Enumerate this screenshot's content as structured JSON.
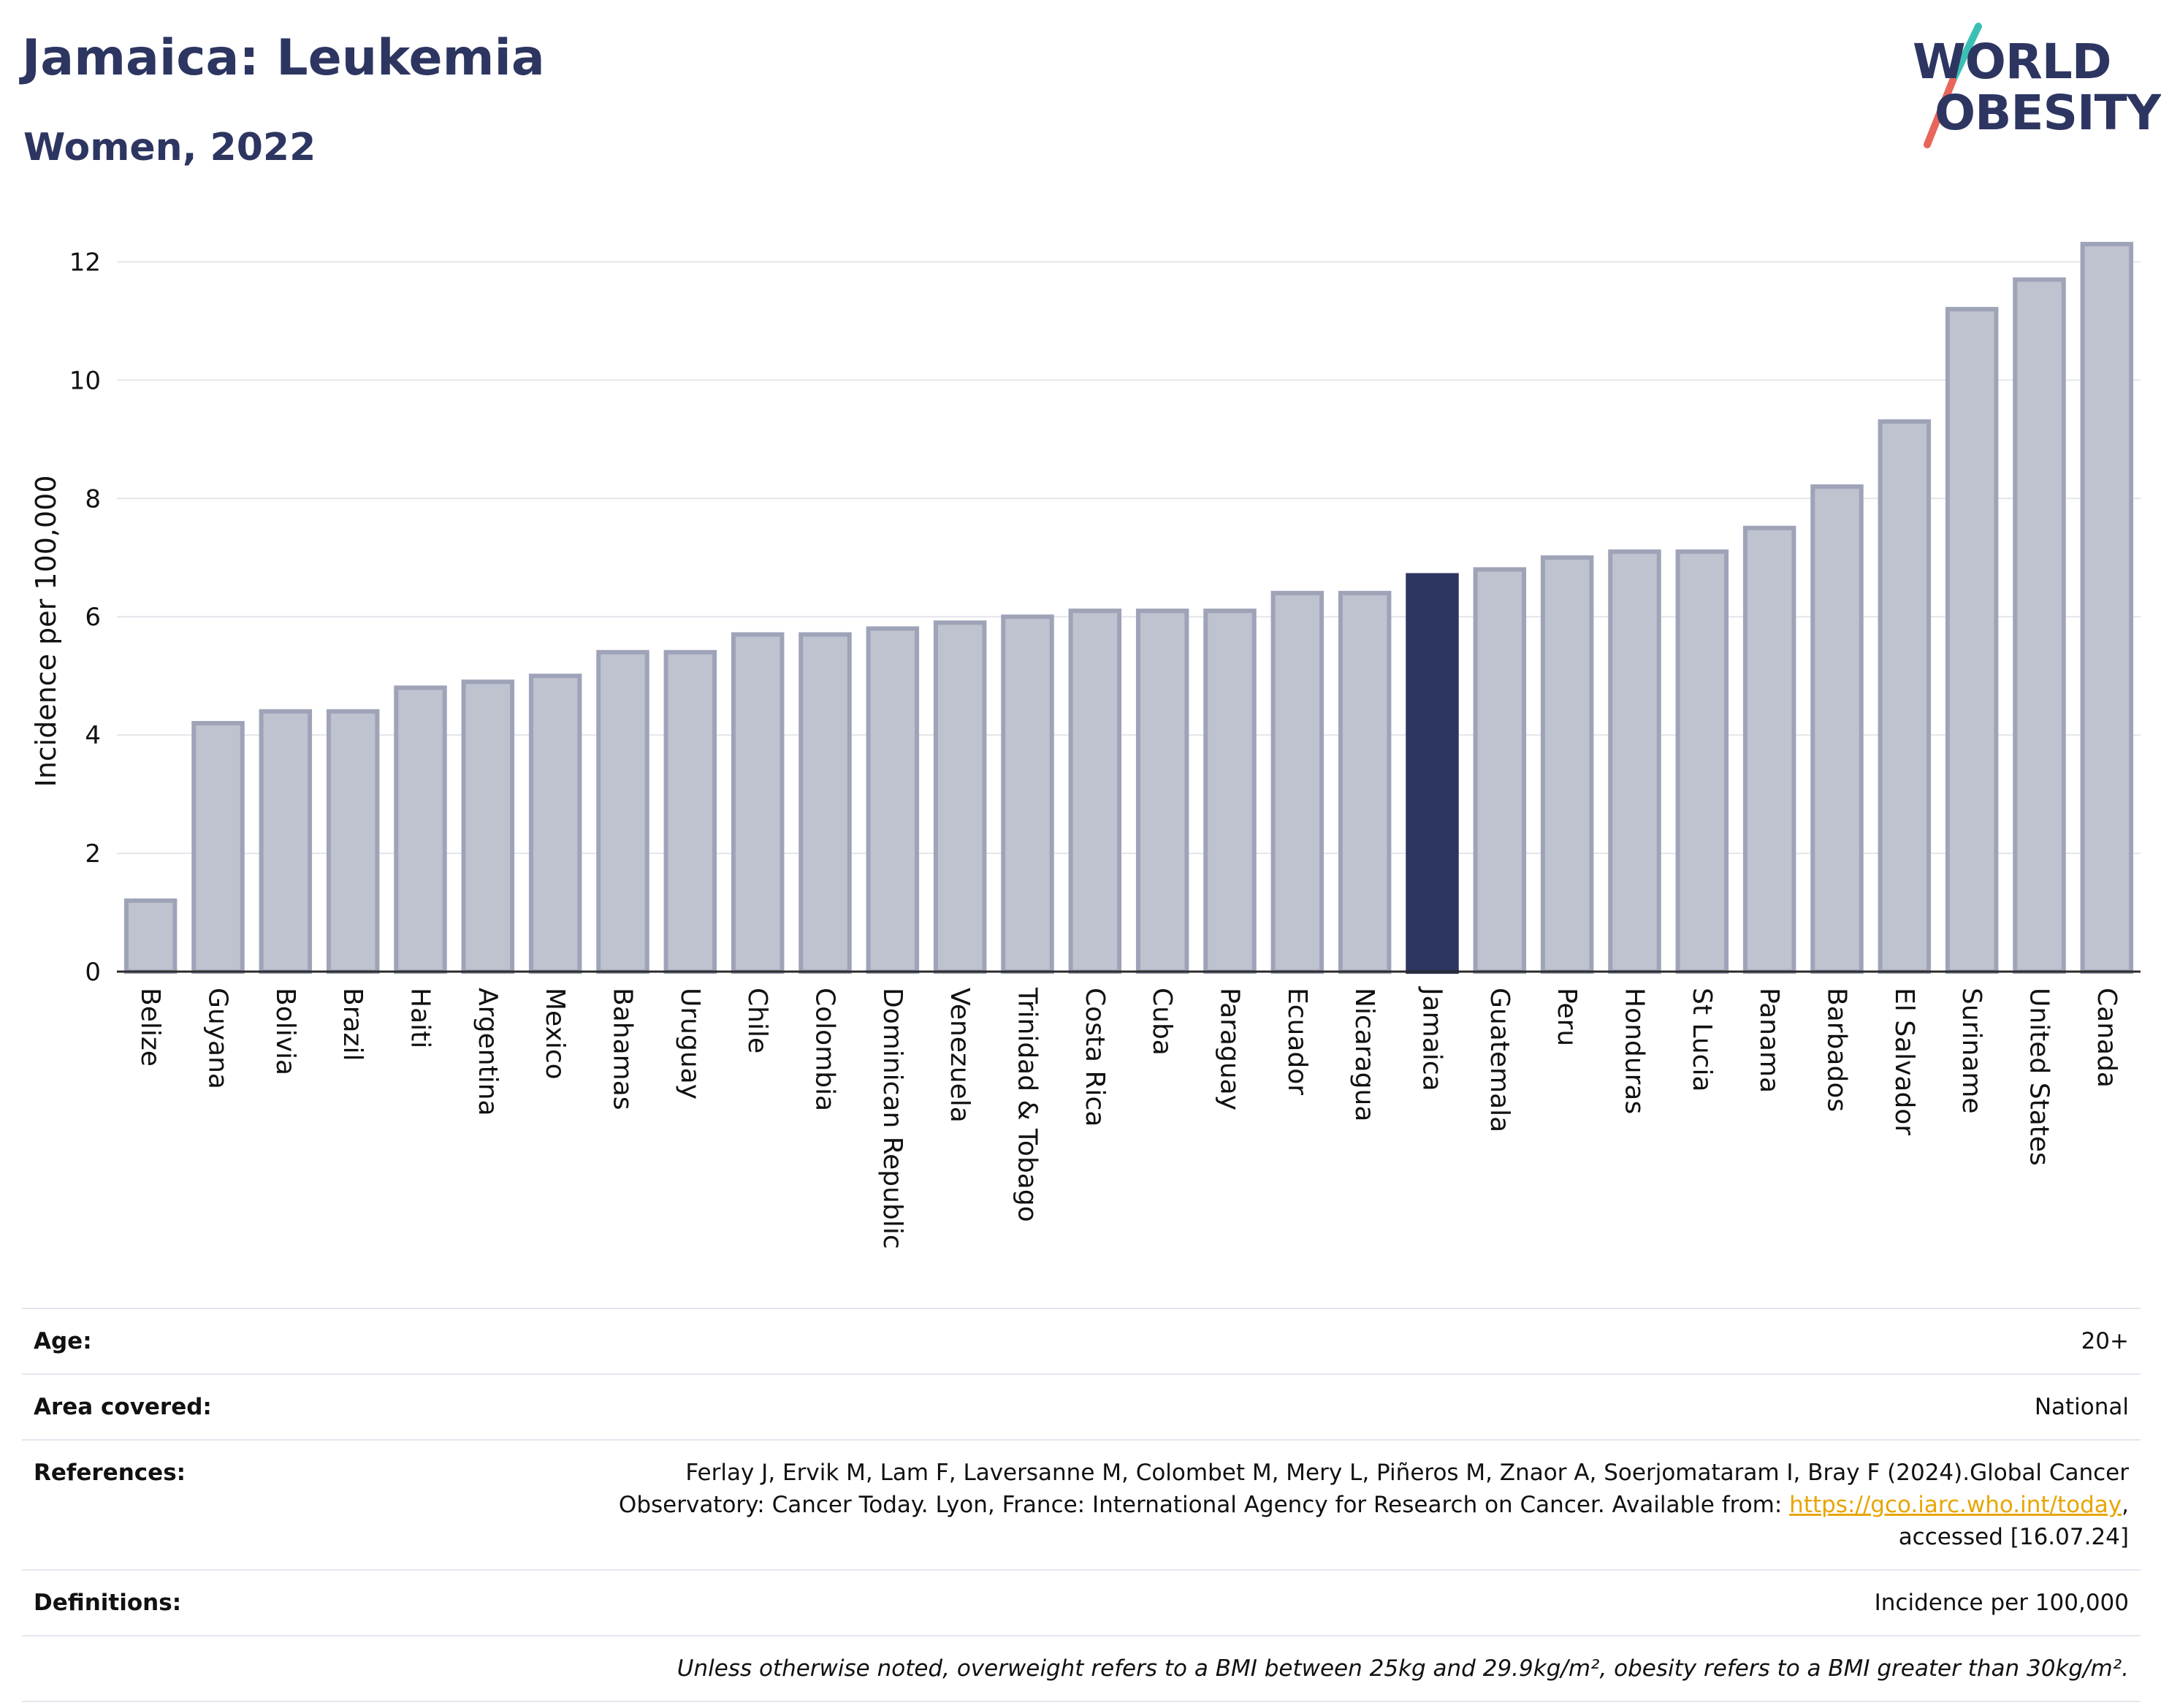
{
  "header": {
    "title": "Jamaica: Leukemia",
    "subtitle": "Women, 2022"
  },
  "logo": {
    "line1": "WORLD",
    "line2": "OBESITY",
    "colors": {
      "text": "#2d3561",
      "slash_top": "#3bbfb4",
      "slash_bottom": "#e8665a"
    }
  },
  "chart_data": {
    "type": "bar",
    "title": "Jamaica: Leukemia",
    "subtitle": "Women, 2022",
    "xlabel": "",
    "ylabel": "Incidence per 100,000",
    "ylim": [
      0,
      12.4
    ],
    "yticks": [
      0,
      2,
      4,
      6,
      8,
      10,
      12
    ],
    "grid": true,
    "highlight": "Jamaica",
    "colors": {
      "bar": "#bfc2cf",
      "bar_edge": "#9ea3b8",
      "highlight": "#2d3561"
    },
    "categories": [
      "Belize",
      "Guyana",
      "Bolivia",
      "Brazil",
      "Haiti",
      "Argentina",
      "Mexico",
      "Bahamas",
      "Uruguay",
      "Chile",
      "Colombia",
      "Dominican Republic",
      "Venezuela",
      "Trinidad & Tobago",
      "Costa Rica",
      "Cuba",
      "Paraguay",
      "Ecuador",
      "Nicaragua",
      "Jamaica",
      "Guatemala",
      "Peru",
      "Honduras",
      "St Lucia",
      "Panama",
      "Barbados",
      "El Salvador",
      "Suriname",
      "United States",
      "Canada"
    ],
    "values": [
      1.2,
      4.2,
      4.4,
      4.4,
      4.8,
      4.9,
      5.0,
      5.4,
      5.4,
      5.7,
      5.7,
      5.8,
      5.9,
      6.0,
      6.1,
      6.1,
      6.1,
      6.4,
      6.4,
      6.7,
      6.8,
      7.0,
      7.1,
      7.1,
      7.5,
      8.2,
      9.3,
      11.2,
      11.7,
      12.3
    ]
  },
  "info": {
    "age": {
      "label": "Age:",
      "value": "20+"
    },
    "area": {
      "label": "Area covered:",
      "value": "National"
    },
    "references": {
      "label": "References:",
      "line1": "Ferlay J, Ervik M, Lam F, Laversanne M, Colombet M, Mery L, Piñeros M, Znaor A, Soerjomataram I, Bray F (2024).Global Cancer",
      "line2_pre": "Observatory: Cancer Today. Lyon, France: International Agency for Research on Cancer. Available from: ",
      "link": "https://gco.iarc.who.int/today",
      "line2_post": ",",
      "line3": "accessed [16.07.24]"
    },
    "definitions": {
      "label": "Definitions:",
      "value": "Incidence per 100,000"
    },
    "note": "Unless otherwise noted, overweight refers to a BMI between 25kg and 29.9kg/m², obesity refers to a BMI greater than 30kg/m²."
  }
}
